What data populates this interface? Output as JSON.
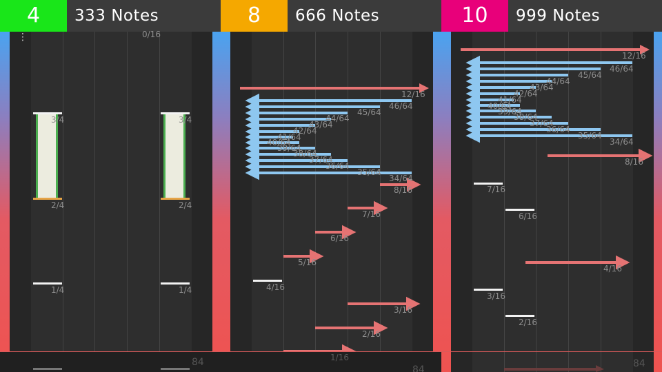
{
  "colors": {
    "panel1": "#19e619",
    "panel2": "#f5a800",
    "panel3": "#e8007a",
    "flick_right": "#e57373",
    "flick_left": "#8ec7f0"
  },
  "panels": [
    {
      "level": "4",
      "notes": "333 Notes",
      "menu": "⋮",
      "top_label": "0/16",
      "bottom_number": "84",
      "labels": {
        "l1": "3/4",
        "l2": "3/4",
        "l3": "2/4",
        "l4": "2/4",
        "l5": "1/4",
        "l6": "1/4"
      }
    },
    {
      "level": "8",
      "notes": "666 Notes",
      "bottom_number": "84",
      "labels": {
        "a": "12/16",
        "b": "46/64",
        "c": "45/64",
        "d": "44/64",
        "e": "43/64",
        "f": "42/64",
        "g": "41/64",
        "h": "40/64",
        "i": "39/64",
        "j": "38/64",
        "k": "37/64",
        "l": "36/64",
        "m": "35/64",
        "n": "34/64",
        "o": "8/16",
        "p": "7/16",
        "q": "6/16",
        "r": "5/16",
        "s": "4/16",
        "t": "3/16",
        "u": "2/16",
        "v": "1/16"
      }
    },
    {
      "level": "10",
      "notes": "999 Notes",
      "bottom_number": "84",
      "labels": {
        "a": "12/16",
        "b": "46/64",
        "c": "45/64",
        "d": "44/64",
        "e": "43/64",
        "f": "42/64",
        "g": "41/64",
        "h": "40/64",
        "i": "39/64",
        "j": "38/64",
        "k": "37/64",
        "l": "36/64",
        "m": "35/64",
        "n": "34/64",
        "o": "8/16",
        "p": "7/16",
        "q": "6/16",
        "r": "4/16",
        "s": "3/16",
        "t": "2/16"
      }
    }
  ]
}
